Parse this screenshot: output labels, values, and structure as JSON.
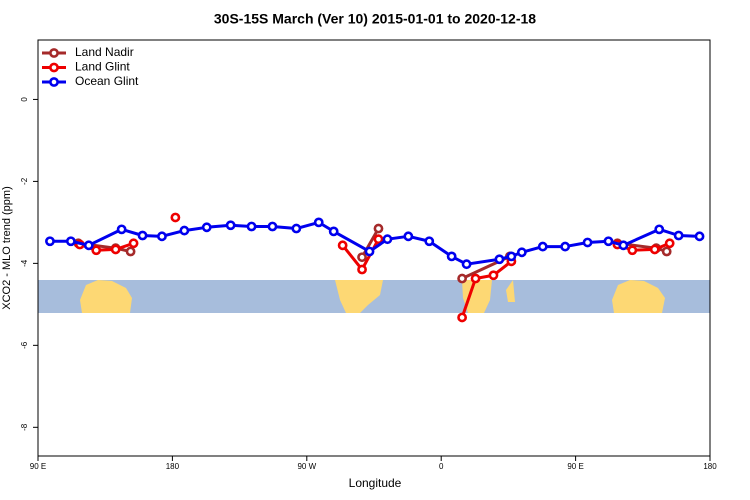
{
  "chart_data": {
    "type": "line",
    "title": "30S-15S March (Ver 10)   2015-01-01 to 2020-12-18",
    "x_label": "Longitude",
    "y_label": "XCO2 - MLO trend (ppm)",
    "xlim": [
      90,
      540
    ],
    "xticks": [
      {
        "value": 90,
        "label": "90 E"
      },
      {
        "value": 180,
        "label": "180"
      },
      {
        "value": 270,
        "label": "90 W"
      },
      {
        "value": 360,
        "label": "0"
      },
      {
        "value": 450,
        "label": "90 E"
      },
      {
        "value": 540,
        "label": "180"
      }
    ],
    "ylim": [
      -8.7,
      1.45
    ],
    "yticks": [
      0,
      -2,
      -4,
      -6,
      -8
    ],
    "legend": "top-left",
    "series": [
      {
        "name": "Land Nadir",
        "color": "#a52a2a",
        "x": [
          117,
          142,
          152,
          null,
          307,
          318,
          null,
          374,
          406,
          null,
          478,
          504,
          511
        ],
        "values": [
          -3.51,
          -3.63,
          -3.71,
          null,
          -3.85,
          -3.15,
          null,
          -4.37,
          -3.83,
          null,
          -3.51,
          -3.63,
          -3.71
        ]
      },
      {
        "name": "Land Glint",
        "color": "#ee0000",
        "x": [
          118,
          129,
          142,
          154,
          null,
          182,
          null,
          294,
          307,
          318,
          null,
          374,
          383,
          395,
          407,
          null,
          478,
          488,
          503,
          513
        ],
        "values": [
          -3.54,
          -3.68,
          -3.66,
          -3.51,
          null,
          -2.88,
          null,
          -3.56,
          -4.15,
          -3.41,
          null,
          -5.32,
          -4.37,
          -4.29,
          -3.95,
          null,
          -3.54,
          -3.68,
          -3.66,
          -3.51
        ]
      },
      {
        "name": "Ocean Glint",
        "color": "#0000ee",
        "x": [
          98,
          112,
          124,
          146,
          160,
          173,
          188,
          203,
          219,
          233,
          247,
          263,
          278,
          288,
          312,
          324,
          338,
          352,
          367,
          377,
          399,
          407,
          414,
          428,
          443,
          458,
          472,
          482,
          506,
          519,
          533
        ],
        "values": [
          -3.46,
          -3.46,
          -3.56,
          -3.17,
          -3.32,
          -3.34,
          -3.2,
          -3.12,
          -3.07,
          -3.1,
          -3.1,
          -3.15,
          -3.0,
          -3.22,
          -3.71,
          -3.41,
          -3.34,
          -3.46,
          -3.83,
          -4.02,
          -3.9,
          -3.83,
          -3.73,
          -3.59,
          -3.59,
          -3.49,
          -3.46,
          -3.56,
          -3.17,
          -3.32,
          -3.34
        ]
      }
    ]
  }
}
